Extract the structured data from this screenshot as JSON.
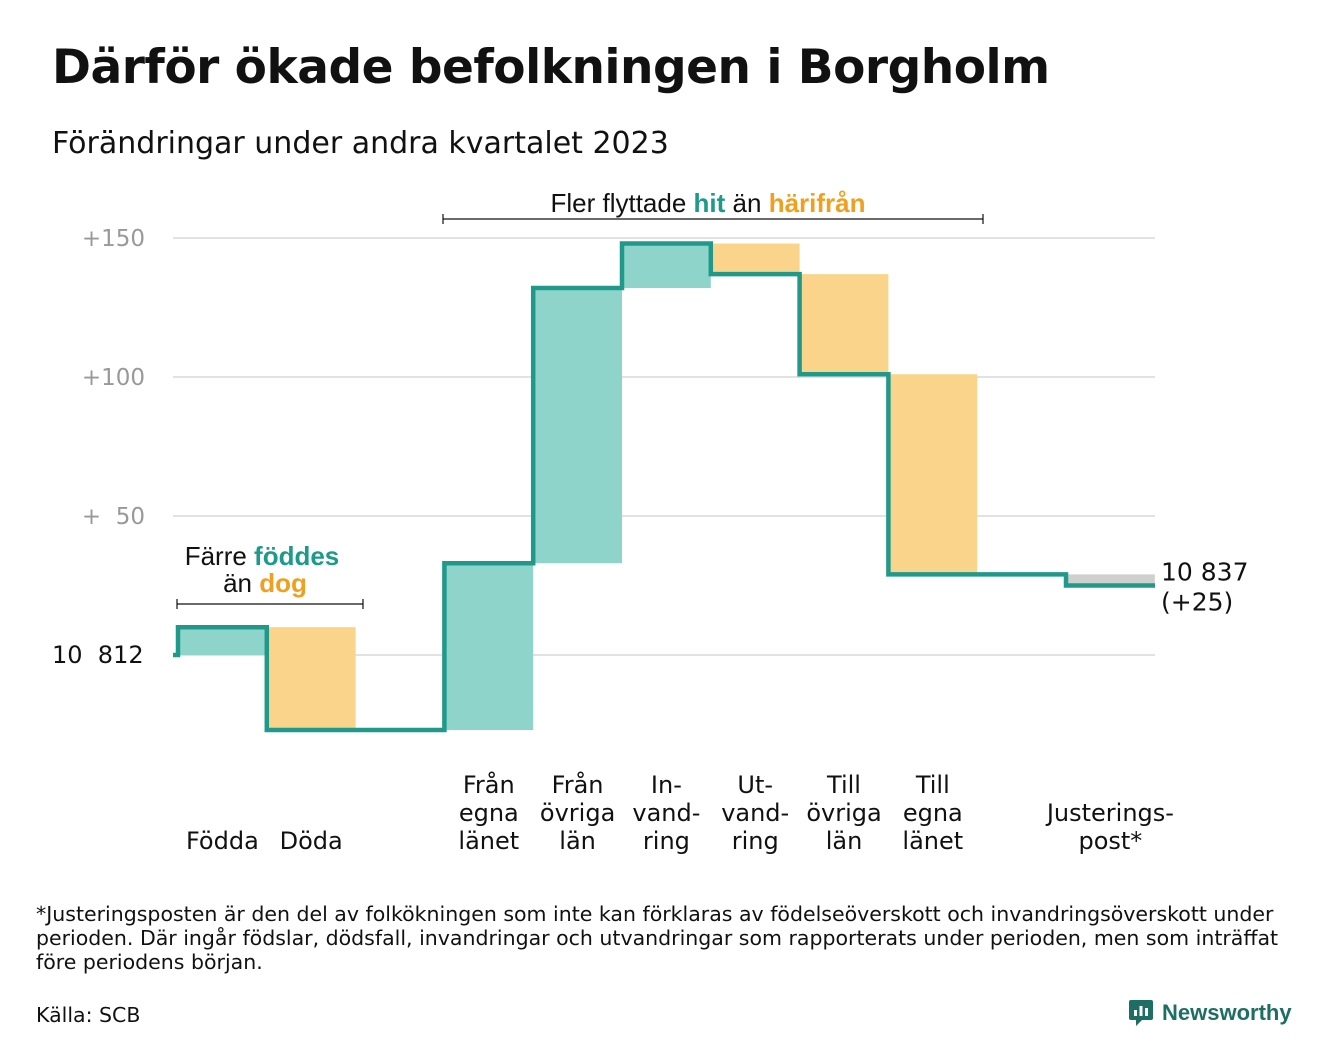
{
  "title": "Därför ökade befolkningen i Borgholm",
  "subtitle": "Förändringar under andra kvartalet 2023",
  "footnote": "*Justeringsposten är den del av folkökningen som inte kan förklaras av födelseöverskott och invandringsöverskott under perioden. Där ingår födslar, dödsfall, invandringar och utvandringar som rapporterats under perioden, men som inträffat före periodens början.",
  "source": "Källa: SCB",
  "brand": "Newsworthy",
  "annotations": {
    "births": {
      "part1": "Färre ",
      "highlight1": "föddes",
      "part2": "än ",
      "highlight2": "dog"
    },
    "moves": {
      "part1": "Fler flyttade ",
      "highlight1": "hit",
      "part2": " än ",
      "highlight2": "härifrån"
    }
  },
  "colors": {
    "increase": "#8ed4cb",
    "decrease": "#f9d48a",
    "line": "#21998a",
    "adjust": "#cfcfcf",
    "grid": "#e2e2e2",
    "tick": "#999999",
    "teal_text": "#1e9a8b",
    "orange_text": "#f0a020"
  },
  "chart_data": {
    "type": "waterfall",
    "start_label": "10  812",
    "start_value": 10812,
    "end_label": "10 837",
    "end_change": "(+25)",
    "end_value": 10837,
    "y_ticks": [
      {
        "value": 150,
        "label": "+150"
      },
      {
        "value": 100,
        "label": "+100"
      },
      {
        "value": 50,
        "label": "+  50"
      }
    ],
    "ylim": [
      -45,
      155
    ],
    "steps": [
      {
        "label": [
          "Födda"
        ],
        "change": 10,
        "kind": "increase"
      },
      {
        "label": [
          "Döda"
        ],
        "change": -37,
        "kind": "decrease"
      },
      {
        "label": [],
        "change": 0,
        "kind": "gap"
      },
      {
        "label": [
          "Från",
          "egna",
          "länet"
        ],
        "change": 60,
        "kind": "increase"
      },
      {
        "label": [
          "Från",
          "övriga",
          "län"
        ],
        "change": 99,
        "kind": "increase"
      },
      {
        "label": [
          "In-",
          "vand-",
          "ring"
        ],
        "change": 16,
        "kind": "increase"
      },
      {
        "label": [
          "Ut-",
          "vand-",
          "ring"
        ],
        "change": -11,
        "kind": "decrease"
      },
      {
        "label": [
          "Till",
          "övriga",
          "län"
        ],
        "change": -36,
        "kind": "decrease"
      },
      {
        "label": [
          "Till",
          "egna",
          "länet"
        ],
        "change": -72,
        "kind": "decrease"
      },
      {
        "label": [],
        "change": 0,
        "kind": "gap"
      },
      {
        "label": [
          "Justerings-",
          "post*"
        ],
        "change": -4,
        "kind": "adjust"
      }
    ]
  }
}
